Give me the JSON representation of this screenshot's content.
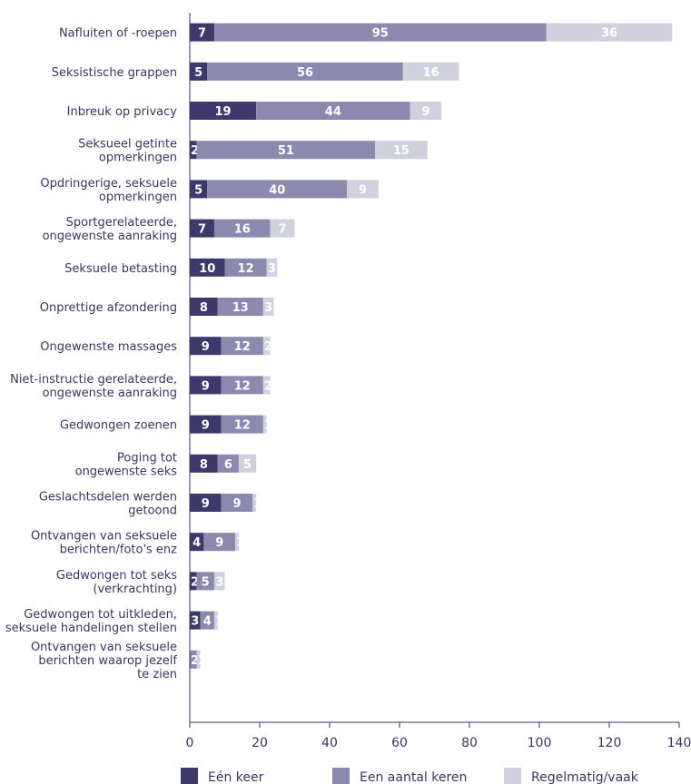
{
  "chart_data": {
    "type": "bar",
    "orientation": "horizontal",
    "stacked": true,
    "categories": [
      [
        "Nafluiten of -roepen"
      ],
      [
        "Seksistische grappen"
      ],
      [
        "Inbreuk op privacy"
      ],
      [
        "Seksueel getinte",
        "opmerkingen"
      ],
      [
        "Opdringerige, seksuele",
        "opmerkingen"
      ],
      [
        "Sportgerelateerde,",
        "ongewenste aanraking"
      ],
      [
        "Seksuele betasting"
      ],
      [
        "Onprettige afzondering"
      ],
      [
        "Ongewenste massages"
      ],
      [
        "Niet-instructie gerelateerde,",
        "ongewenste aanraking"
      ],
      [
        "Gedwongen zoenen"
      ],
      [
        "Poging tot",
        "ongewenste seks"
      ],
      [
        "Geslachtsdelen werden",
        "getoond"
      ],
      [
        "Ontvangen van seksuele",
        "berichten/foto's enz"
      ],
      [
        "Gedwongen tot seks",
        "(verkrachting)"
      ],
      [
        "Gedwongen tot uitkleden,",
        "seksuele handelingen stellen"
      ],
      [
        "Ontvangen van seksuele",
        "berichten waarop jezelf",
        "te zien"
      ]
    ],
    "series": [
      {
        "name": "Eén keer",
        "color": "#3d3a6b",
        "values": [
          7,
          5,
          19,
          2,
          5,
          7,
          10,
          8,
          9,
          9,
          9,
          8,
          9,
          4,
          2,
          3,
          0
        ]
      },
      {
        "name": "Een aantal keren",
        "color": "#8c89ae",
        "values": [
          95,
          56,
          44,
          51,
          40,
          16,
          12,
          13,
          12,
          12,
          12,
          6,
          9,
          9,
          5,
          4,
          2
        ]
      },
      {
        "name": "Regelmatig/vaak",
        "color": "#d1d0de",
        "values": [
          36,
          16,
          9,
          15,
          9,
          7,
          3,
          3,
          2,
          2,
          1,
          5,
          1,
          1,
          3,
          1,
          1
        ]
      }
    ],
    "xlim": [
      0,
      140
    ],
    "xticks": [
      0,
      20,
      40,
      60,
      80,
      100,
      120,
      140
    ],
    "grid": false,
    "legend": "bottom"
  }
}
